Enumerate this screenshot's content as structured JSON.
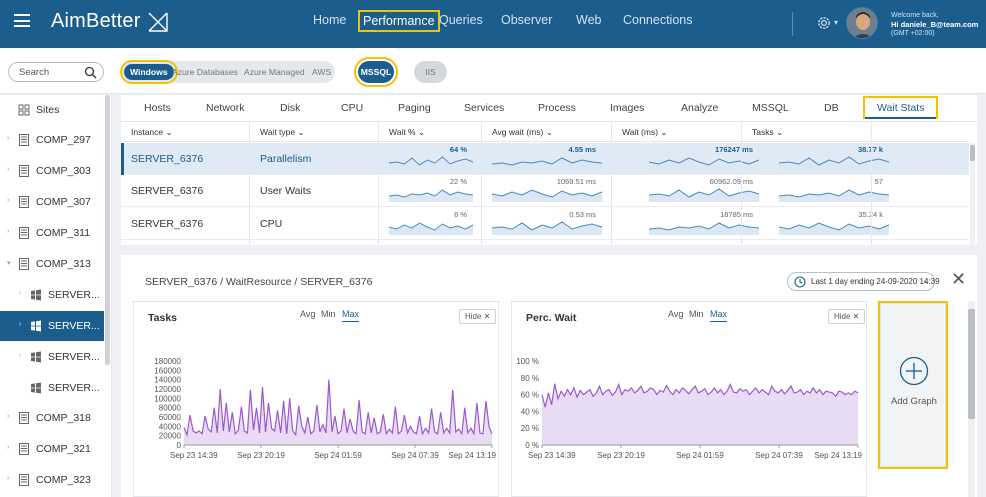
{
  "app": {
    "logo_text": "AimBetter",
    "nav": [
      "Home",
      "Performance",
      "Queries",
      "Observer",
      "Web",
      "Connections"
    ],
    "active_nav": "Performance",
    "welcome_line1": "Welcome back,",
    "welcome_user": "Hi daniele_B@team.com",
    "welcome_tz": "(GMT +02:00)"
  },
  "filters": {
    "search_placeholder": "Search",
    "platforms": [
      "Windows",
      "Azure Databases",
      "Azure Managed",
      "AWS"
    ],
    "active_platform": "Windows",
    "mssql_label": "MSSQL",
    "iis_label": "IIS"
  },
  "sidebar": {
    "items": [
      {
        "label": "Sites",
        "kind": "sites"
      },
      {
        "label": "COMP_297",
        "kind": "comp"
      },
      {
        "label": "COMP_303",
        "kind": "comp"
      },
      {
        "label": "COMP_307",
        "kind": "comp"
      },
      {
        "label": "COMP_311",
        "kind": "comp"
      },
      {
        "label": "COMP_313",
        "kind": "comp-open"
      },
      {
        "label": "SERVER...",
        "kind": "server"
      },
      {
        "label": "SERVER...",
        "kind": "server-active"
      },
      {
        "label": "SERVER...",
        "kind": "server"
      },
      {
        "label": "SERVER...",
        "kind": "server-leaf"
      },
      {
        "label": "COMP_318",
        "kind": "comp"
      },
      {
        "label": "COMP_321",
        "kind": "comp"
      },
      {
        "label": "COMP_323",
        "kind": "comp"
      }
    ]
  },
  "tabs": [
    "Hosts",
    "Network",
    "Disk",
    "CPU",
    "Paging",
    "Services",
    "Process",
    "Images",
    "Analyze",
    "MSSQL",
    "DB",
    "Wait Stats"
  ],
  "active_tab": "Wait Stats",
  "table": {
    "headers": [
      "Instance",
      "Wait type",
      "Wait %",
      "Avg wait (ms)",
      "Wait (ms)",
      "Tasks"
    ],
    "rows": [
      {
        "instance": "SERVER_6376",
        "wait_type": "Parallelism",
        "wait_pct": "64 %",
        "avg_wait": "4.55 ms",
        "wait_ms": "176247 ms",
        "tasks": "38.77 k"
      },
      {
        "instance": "SERVER_6376",
        "wait_type": "User Waits",
        "wait_pct": "22 %",
        "avg_wait": "1069.51 ms",
        "wait_ms": "60962.09 ms",
        "tasks": "57"
      },
      {
        "instance": "SERVER_6376",
        "wait_type": "CPU",
        "wait_pct": "6 %",
        "avg_wait": "0.53 ms",
        "wait_ms": "18785 ms",
        "tasks": "35.24 k"
      }
    ]
  },
  "detail": {
    "breadcrumb": "SERVER_6376 / WaitResource / SERVER_6376",
    "date_range": "Last 1 day ending 24-09-2020 14:39",
    "add_graph_label": "Add Graph",
    "aggregations": [
      "Avg",
      "Min",
      "Max"
    ],
    "hide_label": "Hide ✕"
  },
  "chart_data": [
    {
      "type": "area",
      "title": "Tasks",
      "active_aggregation": "Max",
      "x_tick_labels": [
        "Sep 23 14:39",
        "Sep 23 20:19",
        "Sep 24 01:59",
        "Sep 24 07:39",
        "Sep 24 13:19"
      ],
      "y_tick_labels": [
        "0",
        "20000",
        "40000",
        "60000",
        "80000",
        "100000",
        "120000",
        "140000",
        "160000",
        "180000"
      ],
      "ylim": [
        0,
        180000
      ],
      "color": "#9b59d0",
      "fill": "#e8dcf5",
      "series": [
        {
          "values": [
            38000,
            22000,
            64000,
            30000,
            26000,
            30000,
            24000,
            62000,
            34000,
            28000,
            80000,
            26000,
            120000,
            30000,
            90000,
            28000,
            70000,
            24000,
            32000,
            82000,
            30000,
            26000,
            118000,
            32000,
            80000,
            26000,
            124000,
            28000,
            90000,
            36000,
            30000,
            74000,
            26000,
            94000,
            24000,
            100000,
            30000,
            22000,
            84000,
            40000,
            26000,
            60000,
            24000,
            30000,
            86000,
            28000,
            44000,
            26000,
            140000,
            28000,
            62000,
            24000,
            30000,
            78000,
            26000,
            56000,
            30000,
            24000,
            96000,
            28000,
            24000,
            70000,
            26000,
            58000,
            24000,
            28000,
            66000,
            24000,
            34000,
            26000,
            82000,
            24000,
            30000,
            64000,
            26000,
            40000,
            28000,
            24000,
            62000,
            24000,
            36000,
            26000,
            78000,
            28000,
            24000,
            70000,
            26000,
            36000,
            26000,
            118000,
            28000,
            34000,
            24000,
            80000,
            26000,
            36000,
            24000,
            90000,
            26000,
            24000,
            94000,
            40000,
            24000
          ]
        }
      ]
    },
    {
      "type": "area",
      "title": "Perc. Wait",
      "active_aggregation": "Max",
      "x_tick_labels": [
        "Sep 23 14:39",
        "Sep 23 20:19",
        "Sep 24 01:59",
        "Sep 24 07:39",
        "Sep 24 13:19"
      ],
      "y_tick_labels": [
        "0 %",
        "20 %",
        "40 %",
        "60 %",
        "80 %",
        "100 %"
      ],
      "ylim": [
        0,
        100
      ],
      "color": "#9b59d0",
      "fill": "#e8dcf5",
      "series": [
        {
          "values": [
            60,
            45,
            62,
            48,
            73,
            55,
            64,
            58,
            66,
            60,
            68,
            57,
            65,
            60,
            63,
            66,
            58,
            62,
            70,
            60,
            64,
            66,
            59,
            63,
            72,
            60,
            66,
            64,
            68,
            62,
            65,
            70,
            62,
            64,
            68,
            66,
            60,
            65,
            63,
            71,
            64,
            60,
            66,
            62,
            68,
            65,
            61,
            66,
            70,
            62,
            64,
            67,
            60,
            63,
            68,
            62,
            66,
            60,
            64,
            72,
            63,
            62,
            67,
            64,
            66,
            60,
            64,
            68,
            62,
            66,
            63,
            60,
            70,
            64,
            62,
            66,
            61,
            65,
            70,
            62,
            63,
            66,
            60,
            64,
            62,
            68,
            62,
            66,
            60,
            64,
            63,
            62,
            58,
            64,
            63,
            60,
            62,
            60,
            64,
            62
          ]
        }
      ]
    }
  ]
}
